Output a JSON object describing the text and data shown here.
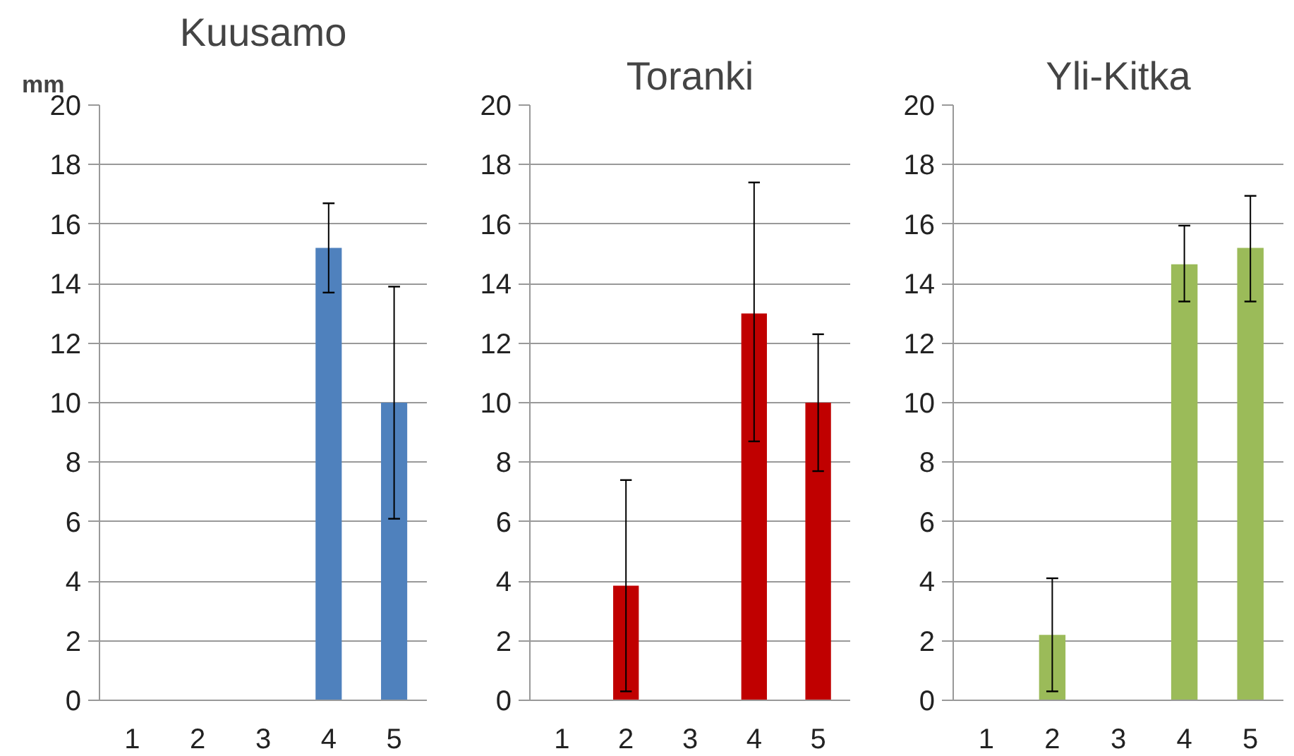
{
  "chart_data": [
    {
      "type": "bar",
      "title": "Kuusamo",
      "ylabel": "mm",
      "categories": [
        "1",
        "2",
        "3",
        "4",
        "5"
      ],
      "color": "#4f81bd",
      "values": [
        null,
        null,
        null,
        15.2,
        10.0
      ],
      "errors": [
        null,
        null,
        null,
        [
          13.7,
          16.7
        ],
        [
          6.1,
          13.9
        ]
      ],
      "ylim": [
        0,
        20
      ],
      "yticks": [
        0,
        2,
        4,
        6,
        8,
        10,
        12,
        14,
        16,
        18,
        20
      ],
      "grid": "y"
    },
    {
      "type": "bar",
      "title": "Toranki",
      "categories": [
        "1",
        "2",
        "3",
        "4",
        "5"
      ],
      "color": "#c00000",
      "values": [
        null,
        3.85,
        null,
        13.0,
        10.0
      ],
      "errors": [
        null,
        [
          0.3,
          7.4
        ],
        null,
        [
          8.7,
          17.4
        ],
        [
          7.7,
          12.3
        ]
      ],
      "ylim": [
        0,
        20
      ],
      "yticks": [
        0,
        2,
        4,
        6,
        8,
        10,
        12,
        14,
        16,
        18,
        20
      ],
      "grid": "y"
    },
    {
      "type": "bar",
      "title": "Yli-Kitka",
      "categories": [
        "1",
        "2",
        "3",
        "4",
        "5"
      ],
      "color": "#9bbb59",
      "values": [
        null,
        2.2,
        null,
        14.65,
        15.2
      ],
      "errors": [
        null,
        [
          0.3,
          4.1
        ],
        null,
        [
          13.4,
          15.95
        ],
        [
          13.4,
          16.95
        ]
      ],
      "ylim": [
        0,
        20
      ],
      "yticks": [
        0,
        2,
        4,
        6,
        8,
        10,
        12,
        14,
        16,
        18,
        20
      ],
      "grid": "y"
    }
  ]
}
